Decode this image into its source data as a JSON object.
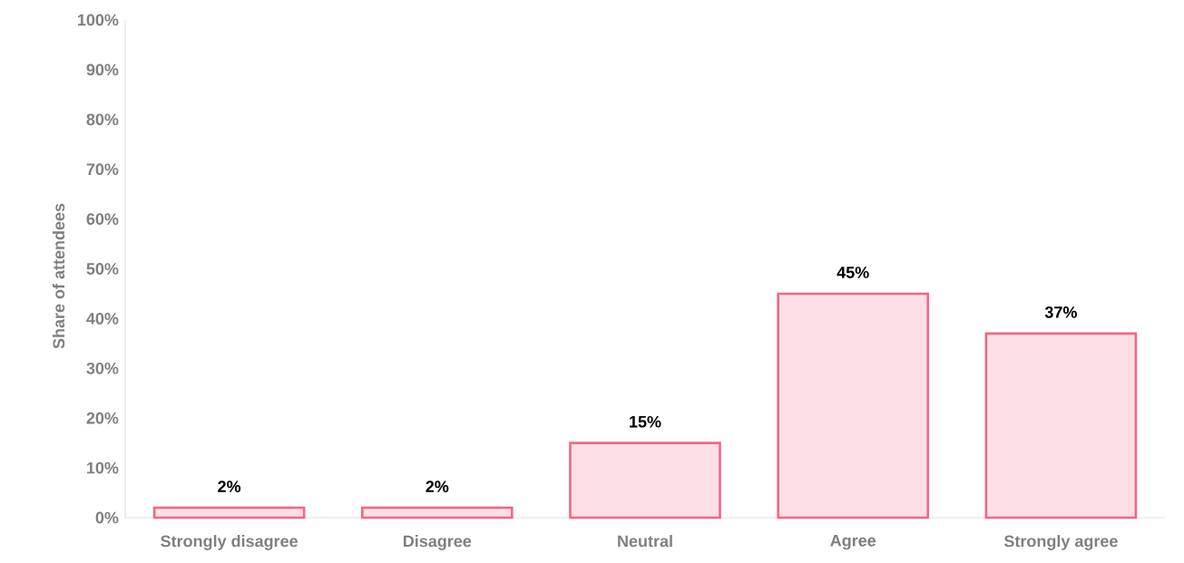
{
  "chart_data": {
    "type": "bar",
    "ylabel": "Share of attendees",
    "categories": [
      "Strongly disagree",
      "Disagree",
      "Neutral",
      "Agree",
      "Strongly agree"
    ],
    "values": [
      2,
      2,
      15,
      45,
      37
    ],
    "value_labels": [
      "2%",
      "2%",
      "15%",
      "45%",
      "37%"
    ],
    "color": "#fde0e6",
    "ylim": [
      0,
      100
    ],
    "yticks": [
      {
        "value": 0,
        "label": "0%"
      },
      {
        "value": 10,
        "label": "10%"
      },
      {
        "value": 20,
        "label": "20%"
      },
      {
        "value": 30,
        "label": "30%"
      },
      {
        "value": 40,
        "label": "40%"
      },
      {
        "value": 50,
        "label": "50%"
      },
      {
        "value": 60,
        "label": "60%"
      },
      {
        "value": 70,
        "label": "70%"
      },
      {
        "value": 80,
        "label": "80%"
      },
      {
        "value": 90,
        "label": "90%"
      },
      {
        "value": 100,
        "label": "100%"
      }
    ],
    "grid": false
  }
}
